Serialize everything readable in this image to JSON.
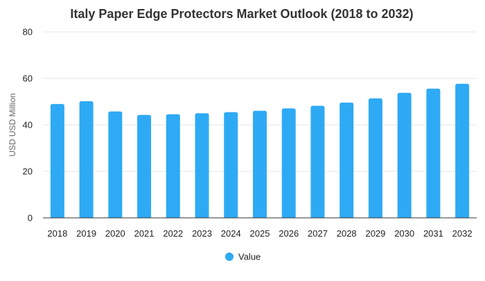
{
  "chart_data": {
    "type": "bar",
    "title": "Italy Paper Edge Protectors Market Outlook (2018 to 2032)",
    "xlabel": "",
    "ylabel": "USD USD Million",
    "categories": [
      "2018",
      "2019",
      "2020",
      "2021",
      "2022",
      "2023",
      "2024",
      "2025",
      "2026",
      "2027",
      "2028",
      "2029",
      "2030",
      "2031",
      "2032"
    ],
    "series": [
      {
        "name": "Value",
        "values": [
          49.0,
          50.2,
          45.8,
          44.3,
          44.6,
          45.0,
          45.5,
          46.1,
          47.1,
          48.2,
          49.6,
          51.4,
          53.8,
          55.6,
          57.7
        ],
        "color": "#2eaaf5"
      }
    ],
    "ylim": [
      0,
      80
    ],
    "yticks": [
      0,
      20,
      40,
      60,
      80
    ],
    "grid": true,
    "legend_position": "bottom-center"
  }
}
